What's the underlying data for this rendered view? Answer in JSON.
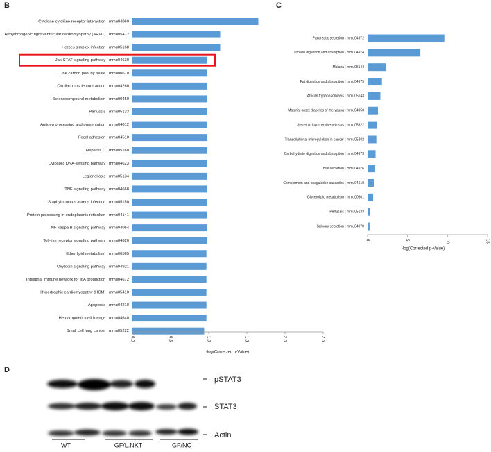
{
  "chart_data": [
    {
      "type": "bar",
      "orientation": "horizontal",
      "panel": "B",
      "categories": [
        "Cytokine-cytokine receptor interaction | mmu04060",
        "Arrhythmogenic right ventricular cardiomyopathy (ARVC) | mmu05412",
        "Herpes simplex infection | mmu05168",
        "Jak-STAT signaling pathway | mmu04630",
        "One carbon pool by folate | mmu00670",
        "Cardiac muscle contraction | mmu04260",
        "Selenocompound metabolism | mmu00450",
        "Pertussis | mmu05133",
        "Antigen processing and presentation | mmu04612",
        "Focal adhesion | mmu04510",
        "Hepatitis C | mmu05160",
        "Cytosolic DNA-sensing pathway | mmu04623",
        "Legionellosis | mmu05134",
        "TNF signaling pathway | mmu04668",
        "Staphylococcus aureus infection | mmu05150",
        "Protein processing in endoplasmic reticulum | mmu04141",
        "NF-kappa B signaling pathway | mmu04064",
        "Toll-like receptor signaling pathway | mmu04620",
        "Ether lipid metabolism | mmu00565",
        "Oxytocin signaling pathway | mmu04921",
        "Intestinal immune network for IgA production | mmu04672",
        "Hypertrophic cardiomyopathy (HCM) | mmu05410",
        "Apoptosis | mmu04210",
        "Hematopoietic cell lineage | mmu04640",
        "Small cell lung cancer | mmu05222"
      ],
      "values": [
        1.65,
        1.15,
        1.15,
        0.98,
        0.98,
        0.98,
        0.98,
        0.98,
        0.98,
        0.98,
        0.98,
        0.98,
        0.98,
        0.98,
        0.98,
        0.98,
        0.98,
        0.98,
        0.97,
        0.97,
        0.97,
        0.97,
        0.97,
        0.97,
        0.94
      ],
      "color": "#5b9bd5",
      "xlabel": "-log(Corrected p-Value)",
      "xlim": [
        0,
        2.5
      ],
      "xticks": [
        {
          "value": 0,
          "label": "0.0"
        },
        0.5,
        {
          "value": 1,
          "label": "1.0"
        },
        1.5,
        {
          "value": 2,
          "label": "2.0"
        },
        2.5
      ],
      "highlight": {
        "category": "Jak-STAT signaling pathway | mmu04630",
        "color": "#e8161b"
      }
    },
    {
      "type": "bar",
      "orientation": "horizontal",
      "panel": "C",
      "categories": [
        "Pancreatic secretion | mmu04972",
        "Protein digestion and absorption | mmu04974",
        "Malaria | mmu05144",
        "Fat digestion and absorption | mmu04975",
        "African trypanosomiasis | mmu05143",
        "Maturity onset diabetes of the young | mmu04950",
        "Systemic lupus erythematosus | mmu05322",
        "Transcriptional misregulation in cancer | mmu05202",
        "Carbohydrate digestion and absorption | mmu04973",
        "Bile secretion | mmu04976",
        "Complement and coagulation cascades | mmu04610",
        "Glycerolipid metabolism | mmu00561",
        "Pertussis | mmu05133",
        "Salivary secretion | mmu04970"
      ],
      "values": [
        9.6,
        6.6,
        2.3,
        1.8,
        1.6,
        1.3,
        1.2,
        1.1,
        1.0,
        0.95,
        0.8,
        0.7,
        0.35,
        0.25
      ],
      "color": "#5b9bd5",
      "xlabel": "-log(Corrected p-Value)",
      "xlim": [
        0,
        15
      ],
      "xticks": [
        0,
        5,
        10,
        15
      ]
    }
  ],
  "blot": {
    "panel": "D",
    "bands": [
      "pSTAT3",
      "STAT3",
      "Actin"
    ],
    "groups": [
      "WT",
      "GF/L.NKT",
      "GF/NC"
    ]
  }
}
